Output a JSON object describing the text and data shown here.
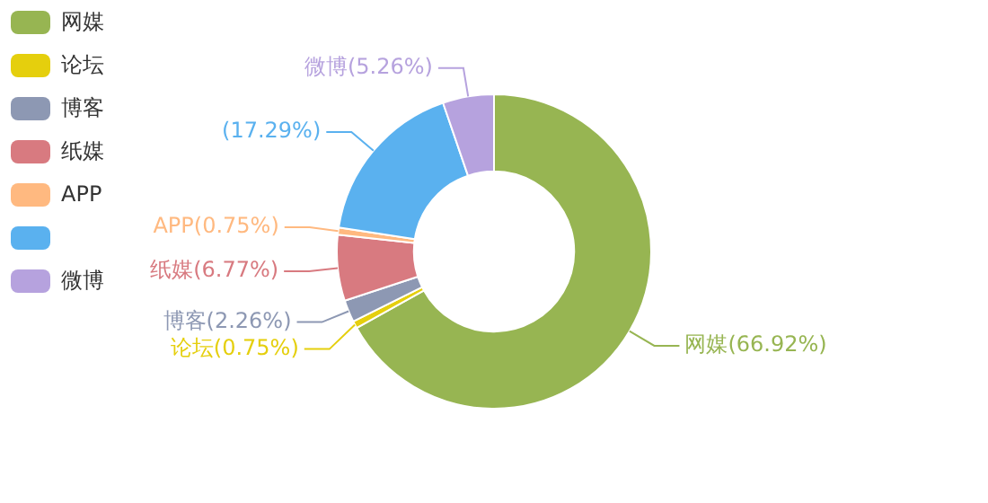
{
  "chart_data": {
    "type": "donut",
    "categories": [
      "网媒",
      "论坛",
      "博客",
      "纸媒",
      "APP",
      null,
      "微博"
    ],
    "values": [
      66.92,
      0.75,
      2.26,
      6.77,
      0.75,
      17.29,
      5.26
    ],
    "colors": [
      "#97b552",
      "#e5cf0d",
      "#8d98b3",
      "#d87a80",
      "#ffb980",
      "#5ab1ef",
      "#b6a2de"
    ],
    "value_labels": [
      "网媒(66.92%)",
      "论坛(0.75%)",
      "博客(2.26%)",
      "纸媒(6.77%)",
      "APP(0.75%)",
      "(17.29%)",
      "微博(5.26%)"
    ],
    "legend": "top left"
  }
}
